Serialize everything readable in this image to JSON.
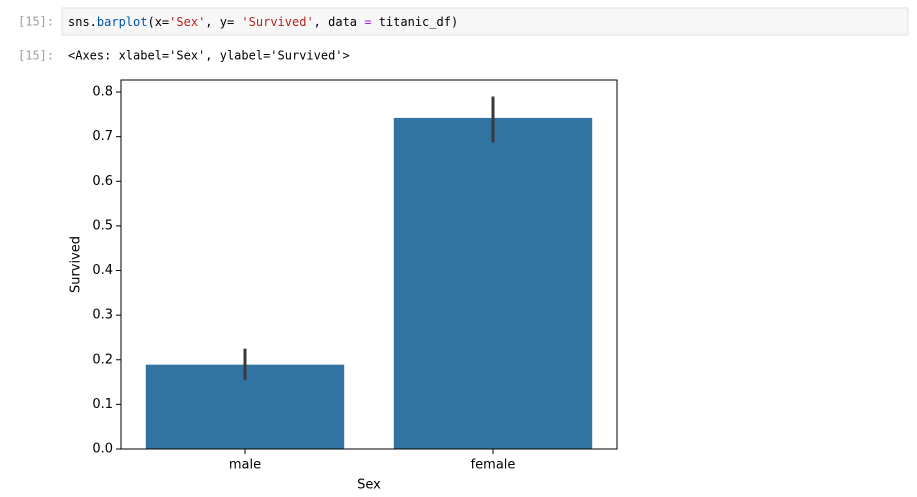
{
  "input_cell": {
    "prompt": "[15]:",
    "code_tokens": [
      "sns.",
      "barplot",
      "(x=",
      "'Sex'",
      ", y= ",
      "'Survived'",
      ", data ",
      "=",
      " titanic_df)"
    ]
  },
  "output_cell": {
    "prompt": "[15]:",
    "text": "<Axes: xlabel='Sex', ylabel='Survived'>"
  },
  "chart_data": {
    "type": "bar",
    "xlabel": "Sex",
    "ylabel": "Survived",
    "categories": [
      "male",
      "female"
    ],
    "values": [
      0.189,
      0.742
    ],
    "ci_low": [
      0.155,
      0.687
    ],
    "ci_high": [
      0.225,
      0.79
    ],
    "color": "#3274a1",
    "errorbar_color": "#3a3a3a",
    "ylim": [
      0,
      0.827
    ],
    "yticks": [
      {
        "value": 0,
        "label": "0.0"
      },
      0.1,
      0.2,
      0.3,
      0.4,
      0.5,
      0.6,
      0.7,
      0.8
    ]
  }
}
